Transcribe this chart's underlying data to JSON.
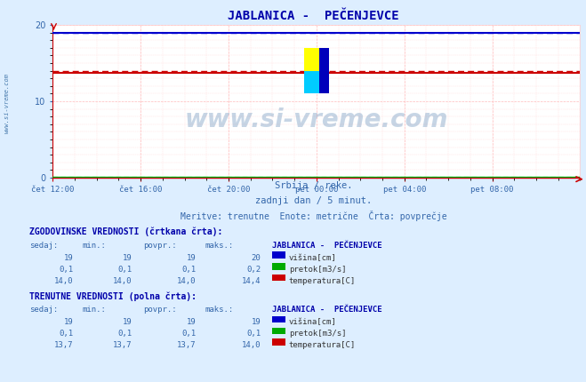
{
  "title": "JABLANICA -  PEČENJEVCE",
  "subtitle1": "Srbija / reke.",
  "subtitle2": "zadnji dan / 5 minut.",
  "subtitle3": "Meritve: trenutne  Enote: metrične  Črta: povprečje",
  "bg_color": "#ddeeff",
  "plot_bg_color": "#ffffff",
  "grid_color_major": "#ffcccc",
  "grid_color_minor": "#ffeeee",
  "x_labels": [
    "čet 12:00",
    "čet 16:00",
    "čet 20:00",
    "pet 00:00",
    "pet 04:00",
    "pet 08:00"
  ],
  "x_ticks_norm": [
    0.0,
    0.1667,
    0.3333,
    0.5,
    0.6667,
    0.8333
  ],
  "ylim": [
    0,
    20
  ],
  "yticks": [
    0,
    10,
    20
  ],
  "n_points": 288,
  "visina_hist_val": 19.0,
  "pretok_hist_val": 0.1,
  "temp_hist_val": 14.0,
  "visina_curr_val": 19.0,
  "pretok_curr_val": 0.1,
  "temp_curr_val": 13.7,
  "visina_color": "#0000cc",
  "pretok_color": "#00aa00",
  "temp_color": "#cc0000",
  "watermark": "www.si-vreme.com",
  "watermark_color": "#4477aa",
  "title_color": "#0000aa",
  "label_color": "#3366aa",
  "section_color": "#0000aa",
  "hist_section_title": "ZGODOVINSKE VREDNOSTI (črtkana črta):",
  "curr_section_title": "TRENUTNE VREDNOSTI (polna črta):",
  "table_header": [
    "sedaj:",
    "min.:",
    "povpr.:",
    "maks.:",
    "JABLANICA -  PEČENJEVCE"
  ],
  "hist_rows": [
    [
      "19",
      "19",
      "19",
      "20",
      "#0000cc",
      "višina[cm]"
    ],
    [
      "0,1",
      "0,1",
      "0,1",
      "0,2",
      "#00aa00",
      "pretok[m3/s]"
    ],
    [
      "14,0",
      "14,0",
      "14,0",
      "14,4",
      "#cc0000",
      "temperatura[C]"
    ]
  ],
  "curr_rows": [
    [
      "19",
      "19",
      "19",
      "19",
      "#0000cc",
      "višina[cm]"
    ],
    [
      "0,1",
      "0,1",
      "0,1",
      "0,1",
      "#00aa00",
      "pretok[m3/s]"
    ],
    [
      "13,7",
      "13,7",
      "13,7",
      "14,0",
      "#cc0000",
      "temperatura[C]"
    ]
  ],
  "logo_yellow": "#ffff00",
  "logo_cyan": "#00ccff",
  "logo_blue": "#0000bb",
  "axis_color": "#cc0000",
  "sidebar_text": "www.si-vreme.com",
  "sidebar_color": "#4477aa"
}
